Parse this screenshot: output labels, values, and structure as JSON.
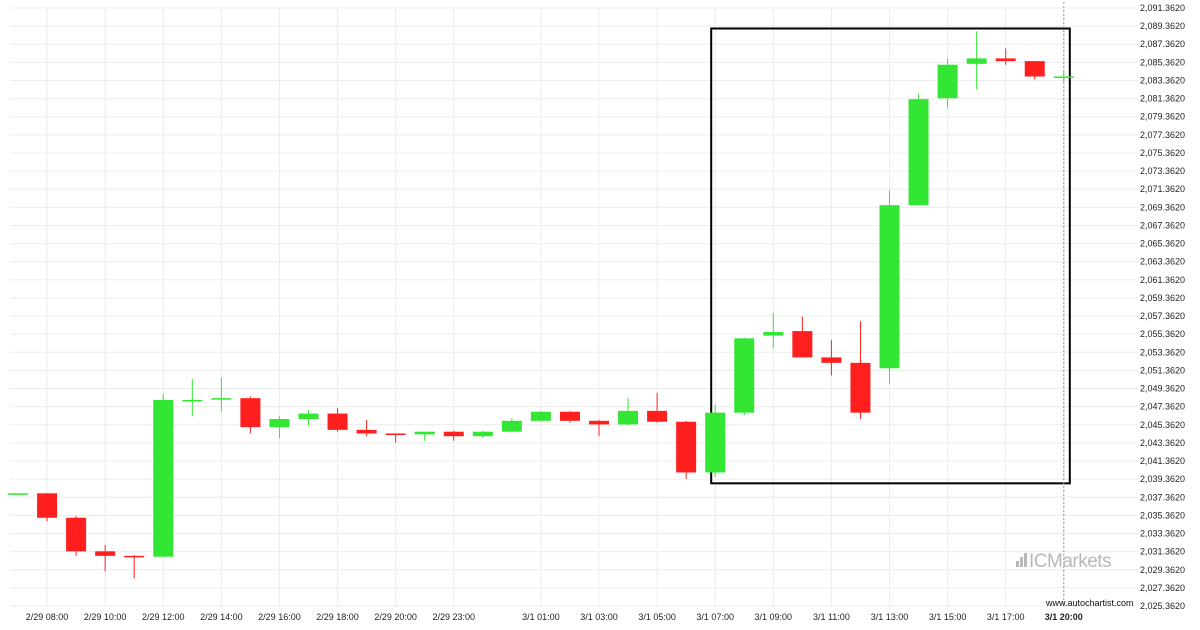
{
  "chart_data": {
    "type": "candlestick",
    "y_axis_ticks": [
      "2,091.3620",
      "2,089.3620",
      "2,087.3620",
      "2,085.3620",
      "2,083.3620",
      "2,081.3620",
      "2,079.3620",
      "2,077.3620",
      "2,075.3620",
      "2,073.3620",
      "2,071.3620",
      "2,069.3620",
      "2,067.3620",
      "2,065.3620",
      "2,063.3620",
      "2,061.3620",
      "2,059.3620",
      "2,057.3620",
      "2,055.3620",
      "2,053.3620",
      "2,051.3620",
      "2,049.3620",
      "2,047.3620",
      "2,045.3620",
      "2,043.3620",
      "2,041.3620",
      "2,039.3620",
      "2,037.3620",
      "2,035.3620",
      "2,033.3620",
      "2,031.3620",
      "2,029.3620",
      "2,027.3620",
      "2,025.3620"
    ],
    "ylim": [
      2025.362,
      2091.362
    ],
    "x_axis_ticks": [
      "2/29 08:00",
      "2/29 10:00",
      "2/29 12:00",
      "2/29 14:00",
      "2/29 16:00",
      "2/29 18:00",
      "2/29 20:00",
      "2/29 23:00",
      "3/1 01:00",
      "3/1 03:00",
      "3/1 05:00",
      "3/1 07:00",
      "3/1 09:00",
      "3/1 11:00",
      "3/1 13:00",
      "3/1 15:00",
      "3/1 17:00",
      "3/1 20:00"
    ],
    "bold_x_tick": "3/1 20:00",
    "up_color": "#33e633",
    "down_color": "#ff1f1f",
    "candles": [
      {
        "o": 2037.8,
        "h": 2037.8,
        "l": 2037.8,
        "c": 2037.8
      },
      {
        "o": 2037.8,
        "h": 2037.8,
        "l": 2034.7,
        "c": 2035.1
      },
      {
        "o": 2035.1,
        "h": 2035.3,
        "l": 2030.9,
        "c": 2031.4
      },
      {
        "o": 2031.4,
        "h": 2032.1,
        "l": 2029.2,
        "c": 2030.9
      },
      {
        "o": 2030.9,
        "h": 2031.0,
        "l": 2028.4,
        "c": 2030.8
      },
      {
        "o": 2030.8,
        "h": 2048.8,
        "l": 2030.8,
        "c": 2048.1
      },
      {
        "o": 2048.1,
        "h": 2050.4,
        "l": 2046.3,
        "c": 2048.1
      },
      {
        "o": 2048.3,
        "h": 2050.6,
        "l": 2046.8,
        "c": 2048.3
      },
      {
        "o": 2048.3,
        "h": 2048.5,
        "l": 2044.4,
        "c": 2045.1
      },
      {
        "o": 2045.1,
        "h": 2046.3,
        "l": 2043.9,
        "c": 2046.0
      },
      {
        "o": 2046.0,
        "h": 2047.0,
        "l": 2045.3,
        "c": 2046.6
      },
      {
        "o": 2046.6,
        "h": 2047.2,
        "l": 2044.6,
        "c": 2044.8
      },
      {
        "o": 2044.8,
        "h": 2045.9,
        "l": 2044.1,
        "c": 2044.4
      },
      {
        "o": 2044.4,
        "h": 2044.4,
        "l": 2043.4,
        "c": 2044.3
      },
      {
        "o": 2044.3,
        "h": 2044.6,
        "l": 2043.6,
        "c": 2044.6
      },
      {
        "o": 2044.6,
        "h": 2044.7,
        "l": 2043.6,
        "c": 2044.1
      },
      {
        "o": 2044.1,
        "h": 2044.7,
        "l": 2043.9,
        "c": 2044.6
      },
      {
        "o": 2044.6,
        "h": 2046.1,
        "l": 2044.5,
        "c": 2045.8
      },
      {
        "o": 2045.8,
        "h": 2046.9,
        "l": 2045.7,
        "c": 2046.8
      },
      {
        "o": 2046.8,
        "h": 2046.9,
        "l": 2045.6,
        "c": 2045.8
      },
      {
        "o": 2045.8,
        "h": 2045.9,
        "l": 2044.1,
        "c": 2045.4
      },
      {
        "o": 2045.4,
        "h": 2048.3,
        "l": 2045.3,
        "c": 2046.9
      },
      {
        "o": 2046.9,
        "h": 2048.9,
        "l": 2045.6,
        "c": 2045.7
      },
      {
        "o": 2045.7,
        "h": 2045.8,
        "l": 2039.4,
        "c": 2040.1
      },
      {
        "o": 2040.1,
        "h": 2047.6,
        "l": 2039.6,
        "c": 2046.7
      },
      {
        "o": 2046.7,
        "h": 2055.0,
        "l": 2046.4,
        "c": 2054.9
      },
      {
        "o": 2055.2,
        "h": 2057.7,
        "l": 2053.8,
        "c": 2055.6
      },
      {
        "o": 2055.7,
        "h": 2057.3,
        "l": 2052.8,
        "c": 2052.8
      },
      {
        "o": 2052.8,
        "h": 2054.7,
        "l": 2050.8,
        "c": 2052.2
      },
      {
        "o": 2052.2,
        "h": 2056.8,
        "l": 2046.0,
        "c": 2046.7
      },
      {
        "o": 2051.6,
        "h": 2071.2,
        "l": 2049.9,
        "c": 2069.6
      },
      {
        "o": 2069.6,
        "h": 2081.9,
        "l": 2069.6,
        "c": 2081.3
      },
      {
        "o": 2081.4,
        "h": 2085.8,
        "l": 2080.3,
        "c": 2085.1
      },
      {
        "o": 2085.2,
        "h": 2088.8,
        "l": 2082.4,
        "c": 2085.8
      },
      {
        "o": 2085.8,
        "h": 2086.9,
        "l": 2085.1,
        "c": 2085.5
      },
      {
        "o": 2085.5,
        "h": 2085.5,
        "l": 2083.5,
        "c": 2083.8
      },
      {
        "o": 2083.8,
        "h": 2084.4,
        "l": 2083.2,
        "c": 2083.8
      }
    ],
    "highlight_box": {
      "x_from": "3/1 07:00",
      "x_to": "3/1 20:00",
      "y_from": 2038.9,
      "y_to": 2089.1
    },
    "vertical_dashed_line_at": "3/1 20:00"
  },
  "branding": {
    "logo_text": "ICMarkets",
    "website": "www.autochartist.com"
  }
}
